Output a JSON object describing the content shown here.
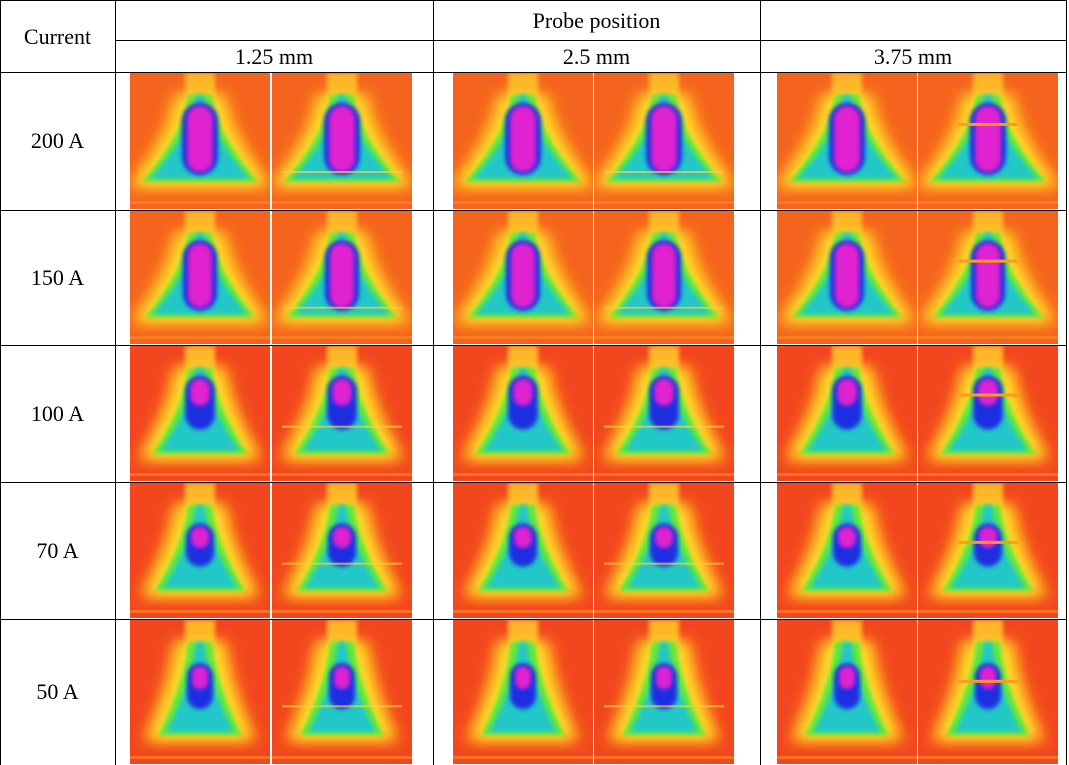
{
  "header": {
    "current": "Current",
    "probe_position": "Probe position",
    "positions": [
      "1.25 mm",
      "2.5 mm",
      "3.75 mm"
    ]
  },
  "rows": [
    "200 A",
    "150 A",
    "100 A",
    "70 A",
    "50 A"
  ]
}
